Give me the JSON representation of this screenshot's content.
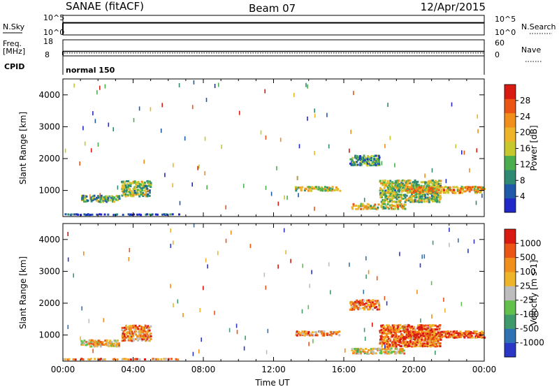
{
  "header": {
    "station": "SANAE (fitACF)",
    "beam": "Beam 07",
    "date": "12/Apr/2015"
  },
  "strips": {
    "noise": {
      "left_label": "N.Sky",
      "right_label": "N.Search",
      "left_ticks": [
        "10^5",
        "10^0"
      ],
      "right_ticks": [
        "10^5",
        "10^0"
      ],
      "level_fraction": 0.62
    },
    "freq": {
      "left_label": "Freq.",
      "left_unit": "[MHz]",
      "right_label": "Nave",
      "left_ticks": [
        "18",
        "8"
      ],
      "right_ticks": [
        "60",
        "0"
      ],
      "freq_fraction": 0.28,
      "nave_fraction": 0.18
    },
    "cpid": {
      "label": "CPID",
      "value": "normal 150"
    }
  },
  "chart_data": [
    {
      "type": "heatmap",
      "panel": "power",
      "ylabel": "Slant Range [km]",
      "x_range_hours": [
        0,
        24
      ],
      "ylim_km": [
        180,
        4500
      ],
      "y_ticks": [
        "1000",
        "2000",
        "3000",
        "4000"
      ],
      "colorbar": {
        "label": "Power [dB]",
        "ticks": [
          "28",
          "24",
          "20",
          "16",
          "12",
          "8",
          "4"
        ],
        "colors": [
          "#2128c8",
          "#1f5aa8",
          "#2e8a72",
          "#4cad4f",
          "#c7c72e",
          "#eeb52a",
          "#f08f1b",
          "#ea5515",
          "#d81a12"
        ]
      },
      "echo_regions": [
        {
          "t": [
            0.0,
            6.6
          ],
          "r": [
            195,
            235
          ],
          "level": 0.1
        },
        {
          "t": [
            1.0,
            3.2
          ],
          "r": [
            600,
            820
          ],
          "level": 0.35
        },
        {
          "t": [
            3.3,
            5.0
          ],
          "r": [
            780,
            1280
          ],
          "level": 0.45
        },
        {
          "t": [
            13.2,
            15.8
          ],
          "r": [
            950,
            1100
          ],
          "level": 0.5
        },
        {
          "t": [
            16.3,
            18.0
          ],
          "r": [
            1750,
            2080
          ],
          "level": 0.3
        },
        {
          "t": [
            16.4,
            19.5
          ],
          "r": [
            380,
            560
          ],
          "level": 0.55
        },
        {
          "t": [
            18.0,
            21.5
          ],
          "r": [
            600,
            1300
          ],
          "level": 0.45
        },
        {
          "t": [
            19.5,
            24.0
          ],
          "r": [
            880,
            1100
          ],
          "level": 0.65
        }
      ]
    },
    {
      "type": "heatmap",
      "panel": "velocity",
      "ylabel": "Slant Range [km]",
      "xlabel": "Time UT",
      "x_range_hours": [
        0,
        24
      ],
      "ylim_km": [
        180,
        4500
      ],
      "x_ticks": [
        "00:00",
        "04:00",
        "08:00",
        "12:00",
        "16:00",
        "20:00",
        "00:00"
      ],
      "y_ticks": [
        "1000",
        "2000",
        "3000",
        "4000"
      ],
      "colorbar": {
        "label": "Velocity [m s-1]",
        "ticks": [
          "1000",
          "500",
          "100",
          "25",
          "-25",
          "-100",
          "-500",
          "-1000"
        ],
        "colors": [
          "#2a36c6",
          "#2e72b4",
          "#3e9a6a",
          "#62c04c",
          "#bdbdbd",
          "#eeb52a",
          "#f08f1b",
          "#ea5515",
          "#d81a12"
        ]
      },
      "echo_regions": [
        {
          "t": [
            0.0,
            6.6
          ],
          "r": [
            195,
            235
          ],
          "level": 0.7
        },
        {
          "t": [
            1.0,
            3.2
          ],
          "r": [
            600,
            820
          ],
          "level": 0.6
        },
        {
          "t": [
            3.3,
            5.0
          ],
          "r": [
            780,
            1280
          ],
          "level": 0.75
        },
        {
          "t": [
            13.2,
            15.8
          ],
          "r": [
            950,
            1100
          ],
          "level": 0.7
        },
        {
          "t": [
            16.3,
            18.0
          ],
          "r": [
            1750,
            2080
          ],
          "level": 0.75
        },
        {
          "t": [
            16.4,
            19.5
          ],
          "r": [
            380,
            560
          ],
          "level": 0.55
        },
        {
          "t": [
            18.0,
            21.5
          ],
          "r": [
            600,
            1300
          ],
          "level": 0.8
        },
        {
          "t": [
            19.5,
            24.0
          ],
          "r": [
            880,
            1100
          ],
          "level": 0.85
        }
      ]
    }
  ]
}
